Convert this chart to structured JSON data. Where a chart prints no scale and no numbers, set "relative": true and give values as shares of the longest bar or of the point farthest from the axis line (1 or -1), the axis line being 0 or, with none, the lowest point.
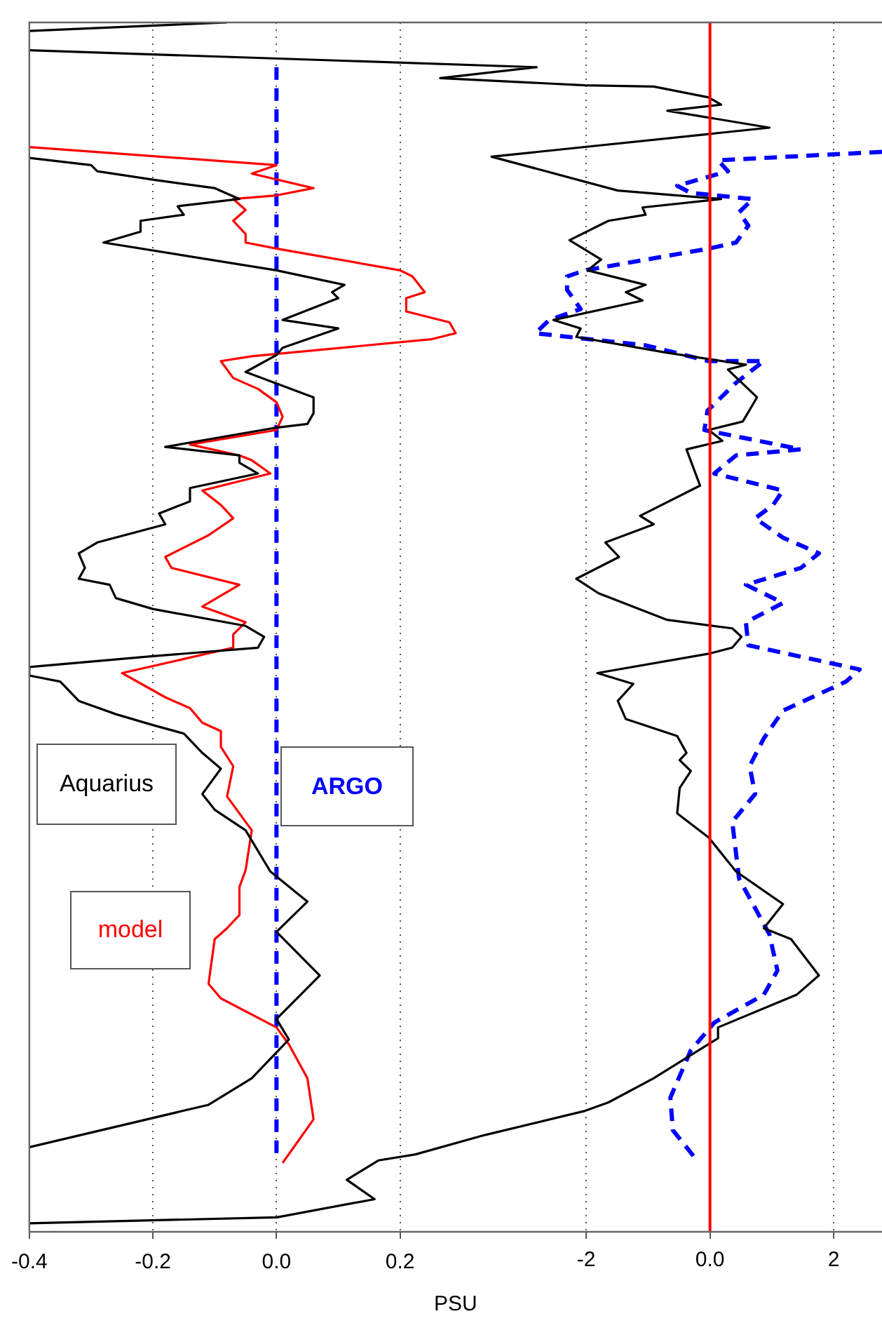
{
  "chart_data": {
    "type": "line",
    "xlabel": "PSU",
    "xlim": [
      -0.4,
      0.98
    ],
    "xticks": [
      -0.4,
      -0.2,
      {
        "value": 0,
        "label": "0.0"
      },
      0.2
    ],
    "x2lim": [
      -11,
      2.78
    ],
    "x2ticks": [
      -2,
      {
        "value": 0,
        "label": "0.0"
      },
      2
    ],
    "relative": true,
    "grid": "x",
    "legend": "left",
    "marker": "none",
    "ref_lines": [
      {
        "axis": "x2",
        "value": 0,
        "color": "#ff0000"
      }
    ],
    "series": [
      {
        "name": "Aquarius",
        "color": "#000000",
        "x": [
          -0.08,
          -0.4,
          null,
          -0.4,
          -0.3,
          -0.29,
          -0.2,
          -0.1,
          -0.06,
          -0.16,
          -0.15,
          -0.22,
          -0.22,
          -0.28,
          0.0,
          0.11,
          0.09,
          0.1,
          0.01,
          0.1,
          0.01,
          0.0,
          -0.05,
          0.06,
          0.06,
          0.05,
          0.0,
          -0.18,
          -0.06,
          -0.06,
          -0.03,
          -0.14,
          -0.14,
          -0.19,
          -0.18,
          -0.29,
          -0.32,
          -0.31,
          -0.32,
          -0.27,
          -0.26,
          -0.2,
          -0.05,
          -0.02,
          -0.03,
          -0.2,
          -0.4,
          -0.4,
          -0.35,
          -0.32,
          -0.26,
          -0.2,
          -0.15,
          -0.12,
          -0.09,
          -0.12,
          -0.1,
          -0.05,
          -0.01,
          0.05,
          0.0,
          0.07,
          0.0,
          0.02,
          -0.04,
          -0.11,
          -0.4
        ],
        "values": [
          1.0,
          0.993,
          null,
          0.888,
          0.882,
          0.877,
          0.87,
          0.863,
          0.854,
          0.848,
          0.841,
          0.836,
          0.827,
          0.818,
          0.795,
          0.783,
          0.777,
          0.772,
          0.754,
          0.747,
          0.731,
          0.725,
          0.711,
          0.69,
          0.677,
          0.668,
          0.665,
          0.649,
          0.642,
          0.636,
          0.627,
          0.615,
          0.604,
          0.594,
          0.585,
          0.57,
          0.561,
          0.549,
          0.54,
          0.535,
          0.524,
          0.515,
          0.501,
          0.492,
          0.483,
          0.476,
          0.467,
          0.46,
          0.455,
          0.439,
          0.428,
          0.419,
          0.412,
          0.396,
          0.383,
          0.362,
          0.349,
          0.332,
          0.298,
          0.273,
          0.248,
          0.212,
          0.176,
          0.159,
          0.127,
          0.105,
          0.07
        ]
      },
      {
        "name": "model",
        "color": "#ff0000",
        "x": [
          -0.4,
          0.0,
          -0.04,
          0.06,
          0.0,
          -0.07,
          -0.05,
          -0.07,
          -0.05,
          -0.05,
          0.0,
          0.2,
          0.22,
          0.24,
          0.21,
          0.21,
          0.28,
          0.29,
          0.25,
          -0.04,
          -0.09,
          -0.07,
          -0.03,
          0.0,
          0.01,
          0.0,
          -0.14,
          -0.06,
          -0.04,
          -0.01,
          -0.12,
          -0.09,
          -0.07,
          -0.11,
          -0.18,
          -0.17,
          -0.06,
          -0.12,
          -0.05,
          -0.07,
          -0.07,
          -0.25,
          -0.18,
          -0.14,
          -0.12,
          -0.09,
          -0.09,
          -0.07,
          -0.08,
          -0.04,
          -0.05,
          -0.06,
          -0.06,
          -0.08,
          -0.1,
          -0.11,
          -0.09,
          0.0,
          0.02,
          0.05,
          0.06,
          0.01
        ],
        "values": [
          0.897,
          0.882,
          0.875,
          0.863,
          0.857,
          0.854,
          0.845,
          0.836,
          0.825,
          0.818,
          0.813,
          0.795,
          0.79,
          0.777,
          0.772,
          0.761,
          0.752,
          0.743,
          0.738,
          0.724,
          0.72,
          0.706,
          0.697,
          0.686,
          0.674,
          0.663,
          0.651,
          0.642,
          0.638,
          0.627,
          0.613,
          0.601,
          0.59,
          0.576,
          0.558,
          0.549,
          0.535,
          0.517,
          0.504,
          0.494,
          0.483,
          0.462,
          0.442,
          0.433,
          0.421,
          0.414,
          0.401,
          0.385,
          0.36,
          0.332,
          0.299,
          0.285,
          0.262,
          0.251,
          0.242,
          0.205,
          0.193,
          0.169,
          0.155,
          0.127,
          0.093,
          0.057
        ]
      },
      {
        "name": "ARGO",
        "color": "#0000ff",
        "line_style": "dashed",
        "x": [
          0,
          0
        ],
        "values": [
          0.963,
          0.061
        ]
      },
      {
        "color": "#000000",
        "axis": "x2",
        "x": [
          -11,
          -2.8,
          -4.36,
          -2.02,
          -0.91,
          -0.02,
          0.18,
          -0.69,
          0.96,
          -3.53,
          -1.49,
          0.18,
          -1.09,
          -1.04,
          -1.64,
          -2.27,
          -1.76,
          -1.98,
          -1.04,
          -1.36,
          -1.09,
          -2.53,
          -2.09,
          -2.16,
          -0.71,
          0.58,
          0.29,
          0.76,
          0.53,
          -0.02,
          0.2,
          -0.38,
          -0.16,
          -1.13,
          -0.91,
          -1.69,
          -1.47,
          -2.16,
          -1.8,
          -0.69,
          0.36,
          0.51,
          0.36,
          -0.02,
          -1.82,
          -1.24,
          -1.49,
          -1.36,
          -0.53,
          -0.38,
          -0.49,
          -0.31,
          -0.49,
          -0.53,
          -0.02,
          0.42,
          1.18,
          0.87,
          1.31,
          1.76,
          1.4,
          0.13,
          0.13,
          -0.91,
          -1.64,
          -2.02,
          -3.64,
          -4.76,
          -5.36,
          -5.87,
          -5.42,
          -7.0,
          -11
        ],
        "values": [
          0.977,
          0.963,
          0.954,
          0.948,
          0.947,
          0.938,
          0.932,
          0.927,
          0.913,
          0.889,
          0.861,
          0.854,
          0.847,
          0.841,
          0.836,
          0.82,
          0.804,
          0.795,
          0.783,
          0.777,
          0.77,
          0.754,
          0.747,
          0.74,
          0.727,
          0.717,
          0.713,
          0.69,
          0.67,
          0.663,
          0.654,
          0.647,
          0.617,
          0.592,
          0.585,
          0.57,
          0.558,
          0.54,
          0.528,
          0.506,
          0.499,
          0.492,
          0.483,
          0.478,
          0.462,
          0.453,
          0.439,
          0.424,
          0.41,
          0.396,
          0.39,
          0.381,
          0.367,
          0.346,
          0.326,
          0.298,
          0.271,
          0.251,
          0.242,
          0.212,
          0.196,
          0.169,
          0.16,
          0.127,
          0.107,
          0.1,
          0.08,
          0.064,
          0.059,
          0.043,
          0.027,
          0.012,
          0.007
        ]
      },
      {
        "color": "#0000ff",
        "axis": "x2",
        "line_style": "dashed",
        "x": [
          2.78,
          0.13,
          0.29,
          -0.53,
          -0.31,
          0.69,
          0.47,
          0.62,
          0.42,
          -0.02,
          -2.02,
          -2.31,
          -2.31,
          -2.09,
          -2.6,
          -2.82,
          -1.04,
          -0.02,
          0.87,
          0.42,
          -0.04,
          -0.09,
          0.2,
          1.47,
          0.42,
          0.07,
          1.18,
          1.02,
          0.73,
          1.18,
          1.76,
          1.47,
          0.58,
          1.18,
          0.58,
          0.62,
          2.42,
          2.2,
          1.18,
          0.87,
          0.64,
          0.73,
          0.36,
          0.47,
          0.96,
          1.09,
          0.87,
          0.07,
          -0.31,
          -0.64,
          -0.6,
          -0.24
        ],
        "values": [
          0.893,
          0.886,
          0.877,
          0.865,
          0.859,
          0.854,
          0.843,
          0.832,
          0.818,
          0.813,
          0.795,
          0.79,
          0.779,
          0.763,
          0.754,
          0.743,
          0.733,
          0.72,
          0.72,
          0.702,
          0.679,
          0.663,
          0.66,
          0.647,
          0.642,
          0.627,
          0.613,
          0.601,
          0.59,
          0.574,
          0.561,
          0.549,
          0.535,
          0.52,
          0.504,
          0.485,
          0.465,
          0.455,
          0.431,
          0.408,
          0.385,
          0.362,
          0.339,
          0.292,
          0.246,
          0.216,
          0.196,
          0.173,
          0.15,
          0.111,
          0.084,
          0.061
        ]
      }
    ]
  }
}
